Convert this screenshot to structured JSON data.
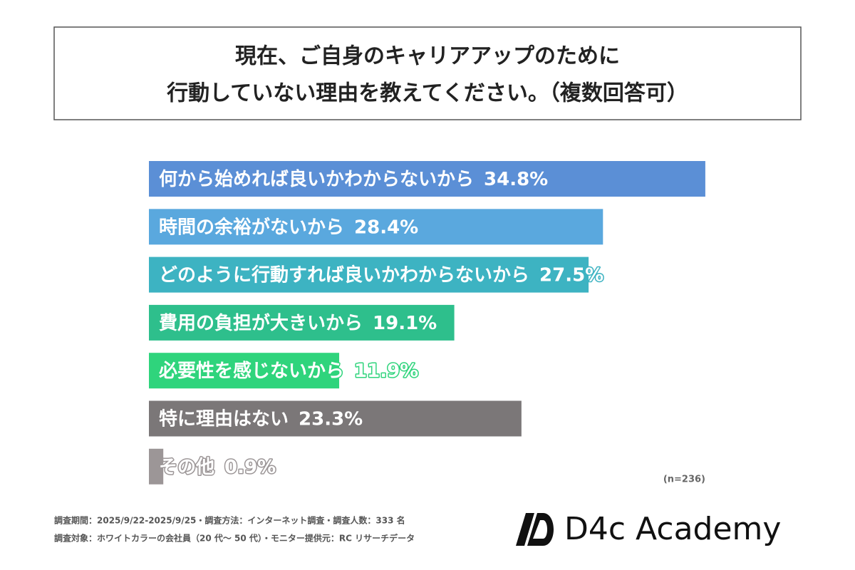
{
  "chart_data": {
    "type": "hbar",
    "title": [
      "現在、ご自身のキャリアアップのために",
      "行動していない理由を教えてください。（複数回答可）"
    ],
    "categories": [
      "何から始めれば良いかわからないから",
      "時間の余裕がないから",
      "どのように行動すれば良いかわからないから",
      "費用の負担が大きいから",
      "必要性を感じないから",
      "特に理由はない",
      "その他"
    ],
    "values": [
      34.8,
      28.4,
      27.5,
      19.1,
      11.9,
      23.3,
      0.9
    ],
    "value_labels": [
      "34.8%",
      "28.4%",
      "27.5%",
      "19.1%",
      "11.9%",
      "23.3%",
      "0.9%"
    ],
    "colors": [
      "#5b8fd6",
      "#5aa8de",
      "#3db3c2",
      "#2ebf8c",
      "#2fd47c",
      "#7b7778",
      "#9c9697"
    ],
    "note": "(n=236)"
  },
  "footer": {
    "lines": [
      "調査期間：2025/9/22-2025/9/25・調査方法：インターネット調査・調査人数：333 名",
      "調査対象：ホワイトカラーの会社員（20 代〜 50 代）・モニター提供元：RC リサーチデータ"
    ],
    "brand": "D4c Academy"
  }
}
